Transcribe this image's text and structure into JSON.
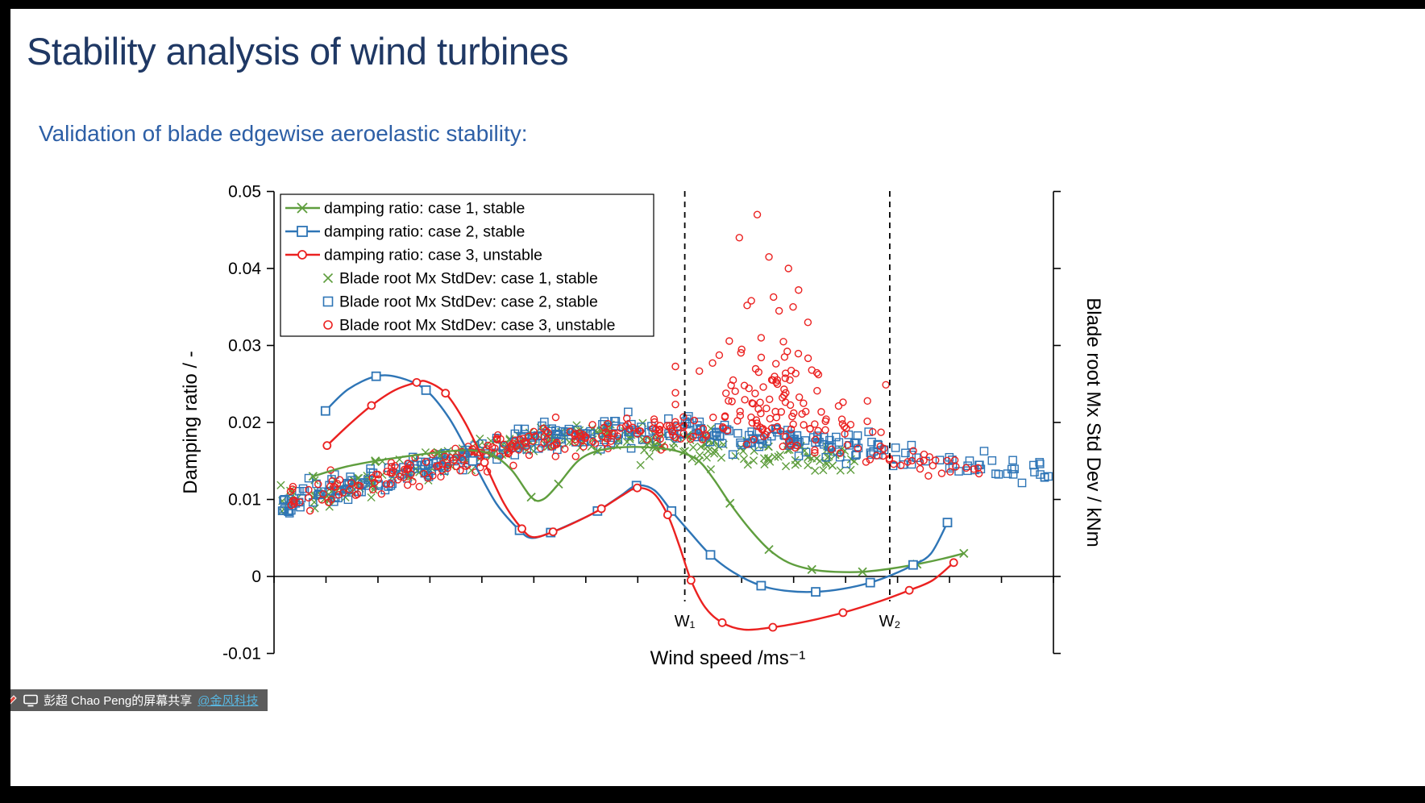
{
  "slide": {
    "title": "Stability analysis of wind turbines",
    "subtitle": "Validation of blade edgewise aeroelastic stability:",
    "title_color": "#1F3864",
    "subtitle_color": "#2D5FA6"
  },
  "share_badge": {
    "text": "彭超 Chao Peng的屏幕共享",
    "link": "@金风科技",
    "bg_color": "#4A4A4A",
    "text_color": "#FFFFFF",
    "link_color": "#58B6E0",
    "icons": [
      "pen-icon",
      "screen-share-icon"
    ]
  },
  "chart_data": {
    "type": "line+scatter",
    "title": "",
    "xlabel": "Wind speed /ms⁻¹",
    "ylabel_left": "Damping ratio / -",
    "ylabel_right": "Blade root Mx Std Dev / kNm",
    "ylim": [
      -0.01,
      0.05
    ],
    "y_tick_values": [
      0.05,
      0.04,
      0.03,
      0.02,
      0.01,
      0,
      -0.01
    ],
    "y_tick_labels": [
      "0.05",
      "0.04",
      "0.03",
      "0.02",
      "0.01",
      "0",
      "-0.01"
    ],
    "x_tick_count": 16,
    "x_tick_labels_shown": false,
    "x_unit_note": "x values below are fractions (0-1) of the wind-speed axis; numeric wind-speed tick labels are not shown in the image",
    "grid": false,
    "legend_position": "upper-left-inside",
    "annotations": [
      {
        "label": "W₁",
        "x": 0.527
      },
      {
        "label": "W₂",
        "x": 0.79
      }
    ],
    "legend": [
      {
        "label": "damping ratio: case 1, stable",
        "color": "#5F9E3E",
        "marker": "x",
        "line": true
      },
      {
        "label": "damping ratio: case 2, stable",
        "color": "#2E75B6",
        "marker": "square",
        "line": true
      },
      {
        "label": "damping ratio: case 3, unstable",
        "color": "#EB2120",
        "marker": "circle",
        "line": true
      },
      {
        "label": "Blade root Mx StdDev: case 1, stable",
        "color": "#5F9E3E",
        "marker": "x",
        "line": false
      },
      {
        "label": "Blade root Mx StdDev: case 2, stable",
        "color": "#2E75B6",
        "marker": "square",
        "line": false
      },
      {
        "label": "Blade root Mx StdDev: case 3, unstable",
        "color": "#EB2120",
        "marker": "circle",
        "line": false
      }
    ],
    "lines": [
      {
        "name": "damping-case1-stable",
        "color": "#5F9E3E",
        "marker": "x",
        "points": [
          [
            0.05,
            0.013
          ],
          [
            0.09,
            0.0142
          ],
          [
            0.13,
            0.015
          ],
          [
            0.17,
            0.0156
          ],
          [
            0.21,
            0.0161
          ],
          [
            0.25,
            0.0164
          ],
          [
            0.28,
            0.0158
          ],
          [
            0.305,
            0.0138
          ],
          [
            0.33,
            0.0103
          ],
          [
            0.345,
            0.01
          ],
          [
            0.365,
            0.012
          ],
          [
            0.39,
            0.015
          ],
          [
            0.415,
            0.0163
          ],
          [
            0.45,
            0.0168
          ],
          [
            0.49,
            0.0167
          ],
          [
            0.52,
            0.0162
          ],
          [
            0.545,
            0.015
          ],
          [
            0.565,
            0.0125
          ],
          [
            0.585,
            0.0095
          ],
          [
            0.61,
            0.0062
          ],
          [
            0.635,
            0.0035
          ],
          [
            0.66,
            0.0018
          ],
          [
            0.69,
            0.0009
          ],
          [
            0.72,
            0.0006
          ],
          [
            0.755,
            0.0006
          ],
          [
            0.79,
            0.001
          ],
          [
            0.825,
            0.0016
          ],
          [
            0.858,
            0.0023
          ],
          [
            0.885,
            0.003
          ]
        ]
      },
      {
        "name": "damping-case2-stable",
        "color": "#2E75B6",
        "marker": "square",
        "points": [
          [
            0.066,
            0.0215
          ],
          [
            0.095,
            0.0243
          ],
          [
            0.131,
            0.026
          ],
          [
            0.162,
            0.0258
          ],
          [
            0.195,
            0.0242
          ],
          [
            0.225,
            0.0205
          ],
          [
            0.255,
            0.015
          ],
          [
            0.285,
            0.0095
          ],
          [
            0.315,
            0.006
          ],
          [
            0.331,
            0.005
          ],
          [
            0.355,
            0.0057
          ],
          [
            0.385,
            0.007
          ],
          [
            0.415,
            0.0085
          ],
          [
            0.445,
            0.0105
          ],
          [
            0.465,
            0.0118
          ],
          [
            0.488,
            0.0112
          ],
          [
            0.51,
            0.0085
          ],
          [
            0.533,
            0.0058
          ],
          [
            0.56,
            0.0028
          ],
          [
            0.59,
            0.0005
          ],
          [
            0.625,
            -0.0012
          ],
          [
            0.66,
            -0.0019
          ],
          [
            0.695,
            -0.002
          ],
          [
            0.73,
            -0.0016
          ],
          [
            0.765,
            -0.0008
          ],
          [
            0.795,
            0.0003
          ],
          [
            0.82,
            0.0015
          ],
          [
            0.843,
            0.003
          ],
          [
            0.864,
            0.007
          ]
        ]
      },
      {
        "name": "damping-case3-unstable",
        "color": "#EB2120",
        "marker": "circle",
        "points": [
          [
            0.068,
            0.017
          ],
          [
            0.095,
            0.0196
          ],
          [
            0.125,
            0.0222
          ],
          [
            0.155,
            0.0242
          ],
          [
            0.183,
            0.0252
          ],
          [
            0.196,
            0.0253
          ],
          [
            0.22,
            0.0238
          ],
          [
            0.245,
            0.02
          ],
          [
            0.27,
            0.0148
          ],
          [
            0.295,
            0.0095
          ],
          [
            0.318,
            0.0062
          ],
          [
            0.333,
            0.0051
          ],
          [
            0.358,
            0.0058
          ],
          [
            0.39,
            0.0072
          ],
          [
            0.42,
            0.0088
          ],
          [
            0.448,
            0.0106
          ],
          [
            0.466,
            0.0115
          ],
          [
            0.487,
            0.0108
          ],
          [
            0.505,
            0.008
          ],
          [
            0.52,
            0.004
          ],
          [
            0.535,
            -0.0005
          ],
          [
            0.553,
            -0.004
          ],
          [
            0.575,
            -0.006
          ],
          [
            0.603,
            -0.0069
          ],
          [
            0.64,
            -0.0066
          ],
          [
            0.685,
            -0.0058
          ],
          [
            0.73,
            -0.0047
          ],
          [
            0.775,
            -0.0033
          ],
          [
            0.815,
            -0.0018
          ],
          [
            0.845,
            -0.0005
          ],
          [
            0.872,
            0.0018
          ]
        ]
      }
    ],
    "scatter": [
      {
        "name": "stddev-case1-stable",
        "color": "#5F9E3E",
        "marker": "x",
        "seed": 11,
        "pieces": [
          {
            "range": [
              0.005,
              0.745
            ],
            "count": 270,
            "sigma": 0.0009,
            "centers": [
              [
                0.0,
                0.0095
              ],
              [
                0.04,
                0.0102
              ],
              [
                0.08,
                0.0112
              ],
              [
                0.12,
                0.0122
              ],
              [
                0.16,
                0.0132
              ],
              [
                0.2,
                0.0142
              ],
              [
                0.24,
                0.0152
              ],
              [
                0.28,
                0.0165
              ],
              [
                0.32,
                0.0175
              ],
              [
                0.36,
                0.0181
              ],
              [
                0.4,
                0.0184
              ],
              [
                0.46,
                0.018
              ],
              [
                0.52,
                0.0172
              ],
              [
                0.58,
                0.0163
              ],
              [
                0.64,
                0.0156
              ],
              [
                0.7,
                0.0152
              ],
              [
                0.745,
                0.015
              ]
            ]
          }
        ]
      },
      {
        "name": "stddev-case2-stable",
        "color": "#2E75B6",
        "marker": "square",
        "seed": 23,
        "pieces": [
          {
            "range": [
              0.005,
              0.78
            ],
            "count": 300,
            "sigma": 0.0009,
            "centers": [
              [
                0.0,
                0.0095
              ],
              [
                0.04,
                0.0102
              ],
              [
                0.08,
                0.0112
              ],
              [
                0.12,
                0.0122
              ],
              [
                0.16,
                0.0132
              ],
              [
                0.2,
                0.0142
              ],
              [
                0.24,
                0.0152
              ],
              [
                0.28,
                0.0165
              ],
              [
                0.32,
                0.0175
              ],
              [
                0.36,
                0.0181
              ],
              [
                0.4,
                0.0184
              ],
              [
                0.46,
                0.0188
              ],
              [
                0.52,
                0.019
              ],
              [
                0.58,
                0.0186
              ],
              [
                0.64,
                0.0178
              ],
              [
                0.7,
                0.0168
              ],
              [
                0.78,
                0.0162
              ]
            ]
          },
          {
            "range": [
              0.78,
              0.995
            ],
            "count": 42,
            "sigma": 0.0009,
            "centers": [
              [
                0.78,
                0.016
              ],
              [
                0.86,
                0.015
              ],
              [
                0.93,
                0.014
              ],
              [
                0.995,
                0.0128
              ]
            ]
          }
        ]
      },
      {
        "name": "stddev-case3-unstable",
        "color": "#EB2120",
        "marker": "circle",
        "seed": 37,
        "pieces": [
          {
            "range": [
              0.02,
              0.53
            ],
            "count": 210,
            "sigma": 0.001,
            "centers": [
              [
                0.0,
                0.0095
              ],
              [
                0.04,
                0.0102
              ],
              [
                0.08,
                0.0112
              ],
              [
                0.12,
                0.0122
              ],
              [
                0.16,
                0.0132
              ],
              [
                0.2,
                0.0142
              ],
              [
                0.24,
                0.0152
              ],
              [
                0.28,
                0.0165
              ],
              [
                0.32,
                0.0175
              ],
              [
                0.36,
                0.0181
              ],
              [
                0.4,
                0.0184
              ],
              [
                0.46,
                0.0188
              ],
              [
                0.53,
                0.019
              ]
            ]
          },
          {
            "range": [
              0.53,
              0.78
            ],
            "count": 45,
            "sigma": 0.0013,
            "centers": [
              [
                0.53,
                0.019
              ],
              [
                0.6,
                0.0185
              ],
              [
                0.66,
                0.018
              ],
              [
                0.72,
                0.0172
              ],
              [
                0.78,
                0.0165
              ]
            ]
          },
          {
            "range": [
              0.78,
              0.905
            ],
            "count": 26,
            "sigma": 0.0009,
            "centers": [
              [
                0.78,
                0.0155
              ],
              [
                0.84,
                0.0148
              ],
              [
                0.905,
                0.014
              ]
            ]
          }
        ],
        "burst": {
          "count": 95,
          "x_mu": 0.645,
          "x_sigma": 0.048,
          "x_range": [
            0.515,
            0.785
          ],
          "y_base": 0.019,
          "y_scale": 0.006,
          "y_max": 0.047
        },
        "outliers": [
          [
            0.62,
            0.047
          ],
          [
            0.597,
            0.044
          ],
          [
            0.635,
            0.0415
          ],
          [
            0.66,
            0.04
          ],
          [
            0.673,
            0.0372
          ],
          [
            0.607,
            0.0352
          ],
          [
            0.648,
            0.0345
          ],
          [
            0.685,
            0.033
          ],
          [
            0.625,
            0.031
          ],
          [
            0.6,
            0.0295
          ],
          [
            0.655,
            0.0285
          ],
          [
            0.69,
            0.0268
          ],
          [
            0.64,
            0.0255
          ]
        ]
      }
    ]
  }
}
